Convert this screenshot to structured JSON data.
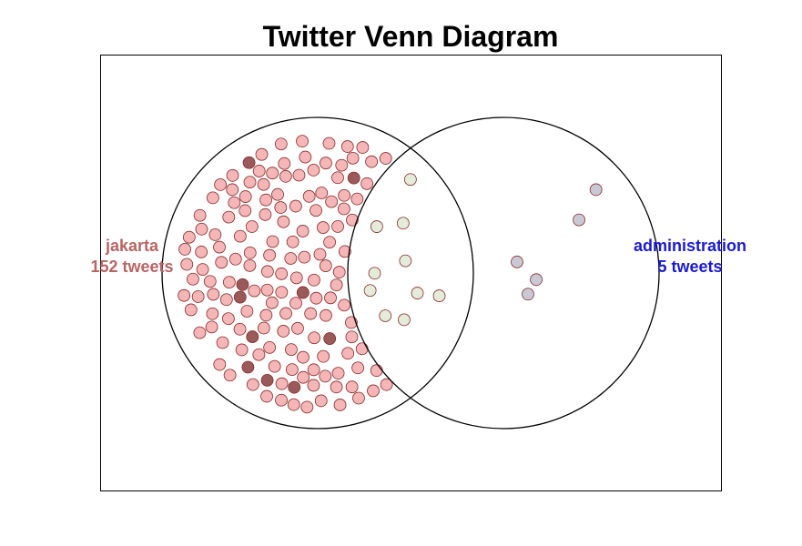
{
  "title": "Twitter Venn Diagram",
  "sets": [
    {
      "key": "left",
      "name": "jakarta",
      "count_label": "152 tweets",
      "color": "#b86464"
    },
    {
      "key": "right",
      "name": "administration",
      "count_label": "5 tweets",
      "color": "#1a1ad6"
    }
  ],
  "colors": {
    "left_dot_fill": "#f4b6b6",
    "left_dot_highlight": "#9a5a5a",
    "overlap_dot_fill": "#e3ecd8",
    "right_dot_fill": "#c9c9d6",
    "dot_stroke": "#8a2a2a",
    "circle_stroke": "#000000"
  },
  "dot_counts": {
    "left_only": 152,
    "overlap": 10,
    "right_only": 5
  }
}
